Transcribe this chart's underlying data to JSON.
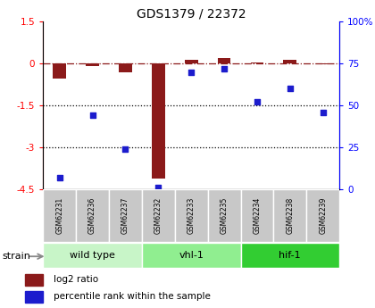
{
  "title": "GDS1379 / 22372",
  "samples": [
    "GSM62231",
    "GSM62236",
    "GSM62237",
    "GSM62232",
    "GSM62233",
    "GSM62235",
    "GSM62234",
    "GSM62238",
    "GSM62239"
  ],
  "log2_ratio": [
    -0.55,
    -0.08,
    -0.3,
    -4.1,
    0.12,
    0.2,
    0.05,
    0.12,
    -0.02
  ],
  "percentile_rank": [
    7,
    44,
    24,
    1,
    70,
    72,
    52,
    60,
    46
  ],
  "ylim_left": [
    -4.5,
    1.5
  ],
  "ylim_right": [
    0,
    100
  ],
  "yticks_left": [
    1.5,
    0,
    -1.5,
    -3,
    -4.5
  ],
  "yticks_right": [
    100,
    75,
    50,
    25,
    0
  ],
  "bar_color": "#8B1A1A",
  "dot_color": "#1C1CCD",
  "groups": [
    {
      "label": "wild type",
      "start": 0,
      "end": 3,
      "color": "#c8f5c8"
    },
    {
      "label": "vhl-1",
      "start": 3,
      "end": 6,
      "color": "#90ee90"
    },
    {
      "label": "hif-1",
      "start": 6,
      "end": 9,
      "color": "#32cd32"
    }
  ],
  "strain_label": "strain",
  "legend_red_label": "log2 ratio",
  "legend_blue_label": "percentile rank within the sample",
  "legend_red_color": "#8B1A1A",
  "legend_blue_color": "#1C1CCD"
}
